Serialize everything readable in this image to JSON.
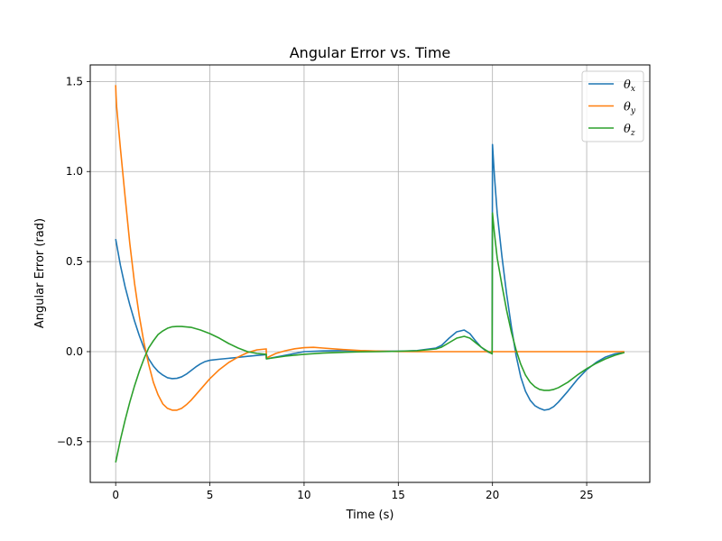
{
  "chart_data": {
    "type": "line",
    "title": "Angular Error vs. Time",
    "xlabel": "Time (s)",
    "ylabel": "Angular Error (rad)",
    "xlim": [
      -1.35,
      28.35
    ],
    "ylim": [
      -0.726,
      1.592
    ],
    "xticks": [
      0,
      5,
      10,
      15,
      20,
      25
    ],
    "yticks": [
      -0.5,
      0.0,
      0.5,
      1.0,
      1.5
    ],
    "xtick_labels": [
      "0",
      "5",
      "10",
      "15",
      "20",
      "25"
    ],
    "ytick_labels": [
      "−0.5",
      "0.0",
      "0.5",
      "1.0",
      "1.5"
    ],
    "grid": true,
    "legend_position": "top-right",
    "series": [
      {
        "name": "θx",
        "name_base": "θ",
        "name_sub": "x",
        "color": "#1f77b4",
        "x": [
          0,
          0.25,
          0.5,
          0.75,
          1.0,
          1.25,
          1.5,
          1.75,
          2.0,
          2.25,
          2.5,
          2.75,
          3.0,
          3.25,
          3.5,
          3.75,
          4.0,
          4.25,
          4.5,
          4.75,
          5.0,
          5.5,
          6.0,
          6.5,
          7.0,
          7.5,
          7.99,
          8.0,
          9.0,
          10.0,
          11.0,
          12.0,
          13.0,
          14.0,
          15.0,
          16.0,
          17.0,
          17.3,
          17.7,
          18.1,
          18.5,
          18.8,
          19.1,
          19.4,
          19.7,
          19.98,
          20.0,
          20.1,
          20.25,
          20.5,
          20.75,
          21.0,
          21.25,
          21.5,
          21.75,
          22.0,
          22.25,
          22.5,
          22.75,
          23.0,
          23.25,
          23.5,
          24.0,
          24.5,
          25.0,
          25.5,
          26.0,
          26.5,
          27.0
        ],
        "y": [
          0.625,
          0.48,
          0.36,
          0.26,
          0.17,
          0.09,
          0.02,
          -0.04,
          -0.08,
          -0.11,
          -0.13,
          -0.145,
          -0.15,
          -0.148,
          -0.14,
          -0.125,
          -0.105,
          -0.085,
          -0.068,
          -0.055,
          -0.048,
          -0.042,
          -0.037,
          -0.032,
          -0.026,
          -0.021,
          -0.017,
          -0.04,
          -0.02,
          0.0,
          0.004,
          0.006,
          0.005,
          0.003,
          0.002,
          0.006,
          0.02,
          0.035,
          0.075,
          0.11,
          0.12,
          0.1,
          0.06,
          0.025,
          0.0,
          -0.01,
          1.15,
          0.98,
          0.77,
          0.53,
          0.32,
          0.14,
          -0.02,
          -0.14,
          -0.22,
          -0.27,
          -0.3,
          -0.315,
          -0.325,
          -0.32,
          -0.305,
          -0.28,
          -0.22,
          -0.155,
          -0.1,
          -0.06,
          -0.03,
          -0.012,
          -0.004
        ]
      },
      {
        "name": "θy",
        "name_base": "θ",
        "name_sub": "y",
        "color": "#ff7f0e",
        "x": [
          0,
          0.02,
          0.05,
          0.25,
          0.5,
          0.75,
          1.0,
          1.25,
          1.5,
          1.75,
          2.0,
          2.25,
          2.5,
          2.75,
          3.0,
          3.25,
          3.5,
          3.75,
          4.0,
          4.25,
          4.5,
          4.75,
          5.0,
          5.5,
          6.0,
          6.5,
          7.0,
          7.5,
          7.99,
          8.0,
          8.5,
          9.0,
          9.5,
          10.0,
          10.5,
          11.0,
          12.0,
          13.0,
          14.0,
          15.0,
          16.0,
          17.0,
          18.0,
          19.0,
          20.0,
          21.0,
          22.0,
          23.0,
          24.0,
          25.0,
          26.0,
          27.0
        ],
        "y": [
          1.48,
          1.42,
          1.36,
          1.13,
          0.86,
          0.6,
          0.38,
          0.2,
          0.05,
          -0.07,
          -0.17,
          -0.24,
          -0.29,
          -0.315,
          -0.325,
          -0.325,
          -0.315,
          -0.295,
          -0.27,
          -0.24,
          -0.21,
          -0.18,
          -0.15,
          -0.1,
          -0.06,
          -0.03,
          -0.005,
          0.01,
          0.015,
          -0.035,
          -0.01,
          0.005,
          0.016,
          0.022,
          0.024,
          0.02,
          0.012,
          0.006,
          0.003,
          0.001,
          0.0,
          0.0,
          0.0,
          0.0,
          0.0,
          0.0,
          0.0,
          0.0,
          0.0,
          0.0,
          0.0,
          0.0
        ]
      },
      {
        "name": "θz",
        "name_base": "θ",
        "name_sub": "z",
        "color": "#2ca02c",
        "x": [
          0,
          0.25,
          0.5,
          0.75,
          1.0,
          1.25,
          1.5,
          1.75,
          2.0,
          2.25,
          2.5,
          2.75,
          3.0,
          3.25,
          3.5,
          4.0,
          4.5,
          5.0,
          5.5,
          6.0,
          6.5,
          7.0,
          7.5,
          7.99,
          8.0,
          9.0,
          10.0,
          11.0,
          12.0,
          13.0,
          14.0,
          15.0,
          16.0,
          17.0,
          17.3,
          17.7,
          18.1,
          18.5,
          18.8,
          19.1,
          19.4,
          19.7,
          19.98,
          20.0,
          20.1,
          20.25,
          20.5,
          20.75,
          21.0,
          21.25,
          21.5,
          21.75,
          22.0,
          22.25,
          22.5,
          22.75,
          23.0,
          23.25,
          23.5,
          24.0,
          24.5,
          25.0,
          25.5,
          26.0,
          26.5,
          27.0
        ],
        "y": [
          -0.615,
          -0.49,
          -0.38,
          -0.28,
          -0.19,
          -0.11,
          -0.04,
          0.02,
          0.06,
          0.095,
          0.115,
          0.13,
          0.138,
          0.14,
          0.14,
          0.135,
          0.12,
          0.1,
          0.075,
          0.045,
          0.02,
          0.0,
          -0.01,
          -0.015,
          -0.04,
          -0.025,
          -0.015,
          -0.008,
          -0.004,
          -0.001,
          0.0,
          0.002,
          0.005,
          0.015,
          0.025,
          0.05,
          0.075,
          0.085,
          0.075,
          0.05,
          0.025,
          0.005,
          -0.012,
          0.77,
          0.66,
          0.52,
          0.37,
          0.23,
          0.11,
          0.01,
          -0.07,
          -0.13,
          -0.17,
          -0.195,
          -0.21,
          -0.215,
          -0.215,
          -0.21,
          -0.2,
          -0.17,
          -0.13,
          -0.095,
          -0.065,
          -0.04,
          -0.02,
          -0.005
        ]
      }
    ]
  }
}
